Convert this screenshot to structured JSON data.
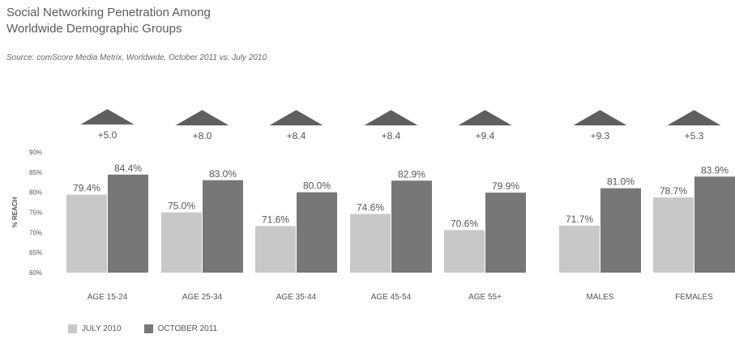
{
  "title_line1": "Social Networking Penetration Among",
  "title_line2": "Worldwide Demographic Groups",
  "source": "Source: comScore Media Metrix, Worldwide, October 2011 vs. July 2010",
  "colors": {
    "july": "#c8c8c8",
    "october": "#777777",
    "triangle": "#5f5f5f",
    "text": "#555555"
  },
  "chart_data": {
    "type": "bar",
    "title": "Social Networking Penetration Among Worldwide Demographic Groups",
    "ylabel": "% REACH",
    "xlabel": "",
    "ylim": [
      60,
      90
    ],
    "yticks": [
      "60%",
      "65%",
      "70%",
      "75%",
      "80%",
      "85%",
      "90%"
    ],
    "grid": false,
    "legend_position": "bottom-left",
    "categories": [
      "AGE 15-24",
      "AGE 25-34",
      "AGE 35-44",
      "AGE 45-54",
      "AGE 55+",
      "MALES",
      "FEMALES"
    ],
    "series": [
      {
        "name": "JULY 2010",
        "values": [
          79.4,
          75.0,
          71.6,
          74.6,
          70.6,
          71.7,
          78.7
        ],
        "labels": [
          "79.4%",
          "75.0%",
          "71.6%",
          "74.6%",
          "70.6%",
          "71.7%",
          "78.7%"
        ]
      },
      {
        "name": "OCTOBER 2011",
        "values": [
          84.4,
          83.0,
          80.0,
          82.9,
          79.9,
          81.0,
          83.9
        ],
        "labels": [
          "84.4%",
          "83.0%",
          "80.0%",
          "82.9%",
          "79.9%",
          "81.0%",
          "83.9%"
        ]
      }
    ],
    "change_labels": [
      "+5.0",
      "+8.0",
      "+8.4",
      "+8.4",
      "+9.4",
      "+9.3",
      "+5.3"
    ]
  }
}
